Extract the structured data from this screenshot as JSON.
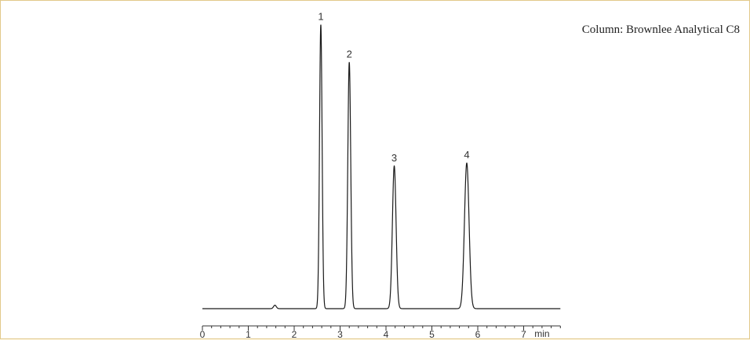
{
  "caption": "Column: Brownlee Analytical C8",
  "chart_data": {
    "type": "line",
    "title": "",
    "xlabel": "min",
    "ylabel": "",
    "xlim": [
      0,
      7.8
    ],
    "ylim": [
      0,
      1
    ],
    "x_ticks": [
      0,
      1,
      2,
      3,
      4,
      5,
      6,
      7
    ],
    "x_tick_labels": [
      "0",
      "1",
      "2",
      "3",
      "4",
      "5",
      "6",
      "7"
    ],
    "baseline": 0.015,
    "peaks": [
      {
        "label": "1",
        "x": 2.58,
        "height": 1.0,
        "width": 0.028
      },
      {
        "label": "2",
        "x": 3.2,
        "height": 0.87,
        "width": 0.032
      },
      {
        "label": "3",
        "x": 4.18,
        "height": 0.51,
        "width": 0.04
      },
      {
        "label": "4",
        "x": 5.76,
        "height": 0.52,
        "width": 0.05
      }
    ],
    "minor_features": [
      {
        "x": 1.58,
        "height": 0.012,
        "width": 0.03
      }
    ],
    "grid": false,
    "legend": "none"
  }
}
